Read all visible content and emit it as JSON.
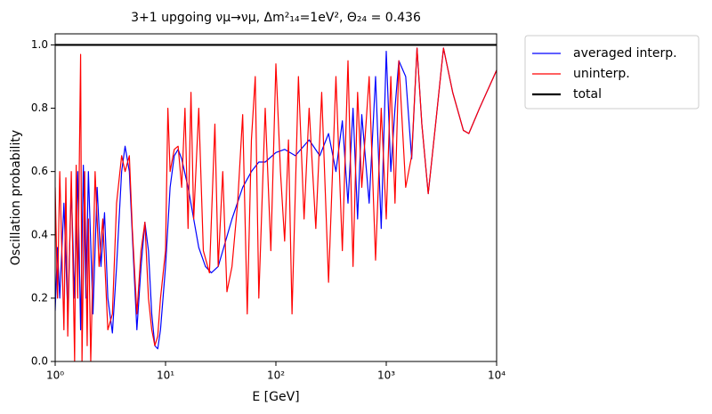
{
  "chart_data": {
    "type": "line",
    "title": "3+1 upgoing νμ→νμ, Δm²₁₄=1eV², Θ₂₄ = 0.436",
    "x_label": "E [GeV]",
    "y_label": "Oscillation probability",
    "xscale": "log",
    "xlim": [
      1,
      10000
    ],
    "ylim": [
      0,
      1.035
    ],
    "xticks": [
      {
        "value": 1,
        "label": "10⁰"
      },
      {
        "value": 10,
        "label": "10¹"
      },
      {
        "value": 100,
        "label": "10²"
      },
      {
        "value": 1000,
        "label": "10³"
      },
      {
        "value": 10000,
        "label": "10⁴"
      }
    ],
    "yticks": [
      {
        "value": 0,
        "label": "0.0"
      },
      {
        "value": 0.2,
        "label": "0.2"
      },
      {
        "value": 0.4,
        "label": "0.4"
      },
      {
        "value": 0.6,
        "label": "0.6"
      },
      {
        "value": 0.8,
        "label": "0.8"
      },
      {
        "value": 1,
        "label": "1.0"
      }
    ],
    "legend": "outside upper right",
    "series": [
      {
        "name": "averaged interp.",
        "color": "#0000ff",
        "width": 1.2,
        "x": [
          1.0,
          1.05,
          1.1,
          1.2,
          1.3,
          1.4,
          1.5,
          1.6,
          1.7,
          1.8,
          1.9,
          2.0,
          2.2,
          2.4,
          2.6,
          2.8,
          3.0,
          3.3,
          3.6,
          4.0,
          4.3,
          4.7,
          5.0,
          5.5,
          6.0,
          6.5,
          7.0,
          7.5,
          8.0,
          8.5,
          9.0,
          10,
          11,
          12,
          13,
          14,
          16,
          18,
          20,
          23,
          26,
          30,
          35,
          40,
          50,
          60,
          70,
          80,
          100,
          120,
          150,
          200,
          250,
          300,
          350,
          400,
          450,
          500,
          550,
          600,
          700,
          800,
          900,
          1000,
          1100,
          1200,
          1300,
          1500,
          1700,
          1900,
          2100,
          2400,
          2800,
          3300,
          4000,
          5000,
          5600,
          7000,
          10000
        ],
        "values": [
          0.16,
          0.36,
          0.2,
          0.5,
          0.15,
          0.55,
          0.2,
          0.6,
          0.1,
          0.62,
          0.2,
          0.6,
          0.15,
          0.55,
          0.3,
          0.47,
          0.2,
          0.09,
          0.3,
          0.6,
          0.68,
          0.6,
          0.4,
          0.1,
          0.3,
          0.44,
          0.35,
          0.15,
          0.05,
          0.04,
          0.1,
          0.3,
          0.55,
          0.65,
          0.67,
          0.64,
          0.55,
          0.45,
          0.36,
          0.3,
          0.28,
          0.3,
          0.38,
          0.45,
          0.55,
          0.6,
          0.63,
          0.63,
          0.66,
          0.67,
          0.65,
          0.7,
          0.65,
          0.72,
          0.6,
          0.76,
          0.5,
          0.8,
          0.45,
          0.78,
          0.5,
          0.9,
          0.42,
          0.98,
          0.6,
          0.8,
          0.95,
          0.9,
          0.64,
          0.99,
          0.75,
          0.53,
          0.75,
          0.99,
          0.85,
          0.73,
          0.72,
          0.8,
          0.92
        ]
      },
      {
        "name": "uninterp.",
        "color": "#ff0000",
        "width": 1.2,
        "x": [
          1.0,
          1.05,
          1.1,
          1.2,
          1.25,
          1.3,
          1.4,
          1.5,
          1.55,
          1.6,
          1.7,
          1.75,
          1.85,
          1.95,
          2.0,
          2.1,
          2.3,
          2.5,
          2.7,
          3.0,
          3.3,
          3.6,
          4.0,
          4.3,
          4.7,
          5.0,
          5.5,
          6.0,
          6.5,
          7.0,
          7.5,
          8.0,
          8.5,
          9.0,
          10,
          10.5,
          11,
          12,
          13,
          14,
          15,
          16,
          17,
          18,
          20,
          22,
          25,
          28,
          30,
          33,
          36,
          40,
          45,
          50,
          55,
          60,
          65,
          70,
          80,
          90,
          100,
          110,
          120,
          130,
          140,
          160,
          180,
          200,
          230,
          260,
          300,
          350,
          400,
          450,
          500,
          550,
          600,
          700,
          800,
          900,
          1000,
          1100,
          1200,
          1300,
          1500,
          1700,
          1900,
          2100,
          2400,
          2800,
          3300,
          4000,
          5000,
          5600,
          7000,
          10000
        ],
        "values": [
          0.55,
          0.2,
          0.6,
          0.1,
          0.58,
          0.08,
          0.6,
          0.0,
          0.62,
          0.2,
          0.97,
          0.0,
          0.6,
          0.05,
          0.45,
          0.0,
          0.6,
          0.3,
          0.45,
          0.1,
          0.15,
          0.5,
          0.65,
          0.6,
          0.65,
          0.42,
          0.15,
          0.35,
          0.44,
          0.2,
          0.1,
          0.05,
          0.08,
          0.2,
          0.35,
          0.8,
          0.6,
          0.67,
          0.68,
          0.55,
          0.8,
          0.42,
          0.85,
          0.45,
          0.8,
          0.35,
          0.28,
          0.75,
          0.3,
          0.6,
          0.22,
          0.3,
          0.5,
          0.78,
          0.15,
          0.7,
          0.9,
          0.2,
          0.8,
          0.35,
          0.94,
          0.6,
          0.38,
          0.7,
          0.15,
          0.9,
          0.45,
          0.8,
          0.42,
          0.85,
          0.25,
          0.9,
          0.35,
          0.95,
          0.3,
          0.85,
          0.55,
          0.9,
          0.32,
          0.8,
          0.45,
          0.9,
          0.5,
          0.95,
          0.55,
          0.65,
          0.99,
          0.75,
          0.53,
          0.75,
          0.99,
          0.85,
          0.73,
          0.72,
          0.8,
          0.92
        ]
      },
      {
        "name": "total",
        "color": "#000000",
        "width": 2.2,
        "x": [
          1,
          10000
        ],
        "values": [
          1,
          1
        ]
      }
    ]
  }
}
